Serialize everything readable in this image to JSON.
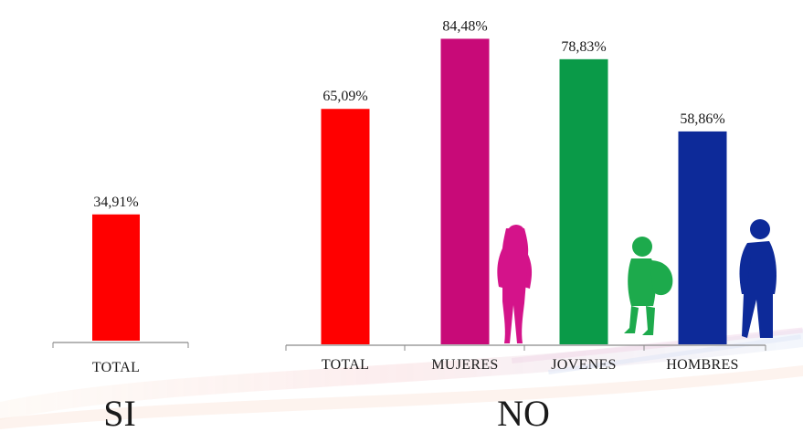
{
  "chart_data": [
    {
      "type": "bar",
      "group_label": "SI",
      "categories": [
        "TOTAL"
      ],
      "values": [
        34.91
      ],
      "value_labels": [
        "34,91%"
      ],
      "colors": [
        "#ff0000"
      ],
      "ylim": [
        0,
        100
      ]
    },
    {
      "type": "bar",
      "group_label": "NO",
      "categories": [
        "TOTAL",
        "MUJERES",
        "JOVENES",
        "HOMBRES"
      ],
      "values": [
        65.09,
        84.48,
        78.83,
        58.86
      ],
      "value_labels": [
        "65,09%",
        "84,48%",
        "78,83%",
        "58,86%"
      ],
      "colors": [
        "#ff0000",
        "#c80a78",
        "#0a9a48",
        "#0d2a99"
      ],
      "ylim": [
        0,
        100
      ]
    }
  ],
  "icons": {
    "mujeres": {
      "name": "woman-silhouette-icon",
      "color": "#d4138a"
    },
    "jovenes": {
      "name": "youth-with-backpack-icon",
      "color": "#1daa4c"
    },
    "hombres": {
      "name": "man-silhouette-icon",
      "color": "#0d2a99"
    }
  }
}
